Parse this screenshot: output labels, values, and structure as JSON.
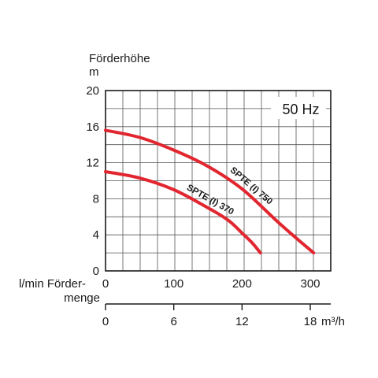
{
  "chart_data": {
    "type": "line",
    "y_title_line1": "Förderhöhe",
    "y_title_line2": "m",
    "y_ticks": [
      "20",
      "16",
      "12",
      "8",
      "4",
      "0"
    ],
    "ylim": [
      0,
      20
    ],
    "x_flow_label_line1": "l/min Förder-",
    "x_flow_label_line2": "menge",
    "x_flow_ticks": [
      "0",
      "100",
      "200",
      "300"
    ],
    "x_flow_values": [
      0,
      100,
      200,
      300
    ],
    "xlim_flow": [
      0,
      330
    ],
    "x_m3h_unit": "m³/h",
    "x_m3h_ticks": [
      "0",
      "6",
      "12",
      "18"
    ],
    "x_m3h_values": [
      0,
      6,
      12,
      18
    ],
    "xlim_m3h": [
      0,
      19.8
    ],
    "frequency_label": "50 Hz",
    "grid": true,
    "curve_color": "#e2262f",
    "series": [
      {
        "name": "SPTE (I) 750",
        "x_lpm": [
          0,
          50,
          100,
          150,
          200,
          250,
          280,
          305
        ],
        "y_m": [
          15.6,
          14.8,
          13.4,
          11.6,
          9.1,
          5.6,
          3.6,
          2.0
        ]
      },
      {
        "name": "SPTE (I) 370",
        "x_lpm": [
          0,
          50,
          100,
          150,
          180,
          200,
          215,
          227
        ],
        "y_m": [
          11.0,
          10.3,
          9.0,
          7.0,
          5.6,
          4.2,
          3.1,
          2.0
        ]
      }
    ]
  }
}
